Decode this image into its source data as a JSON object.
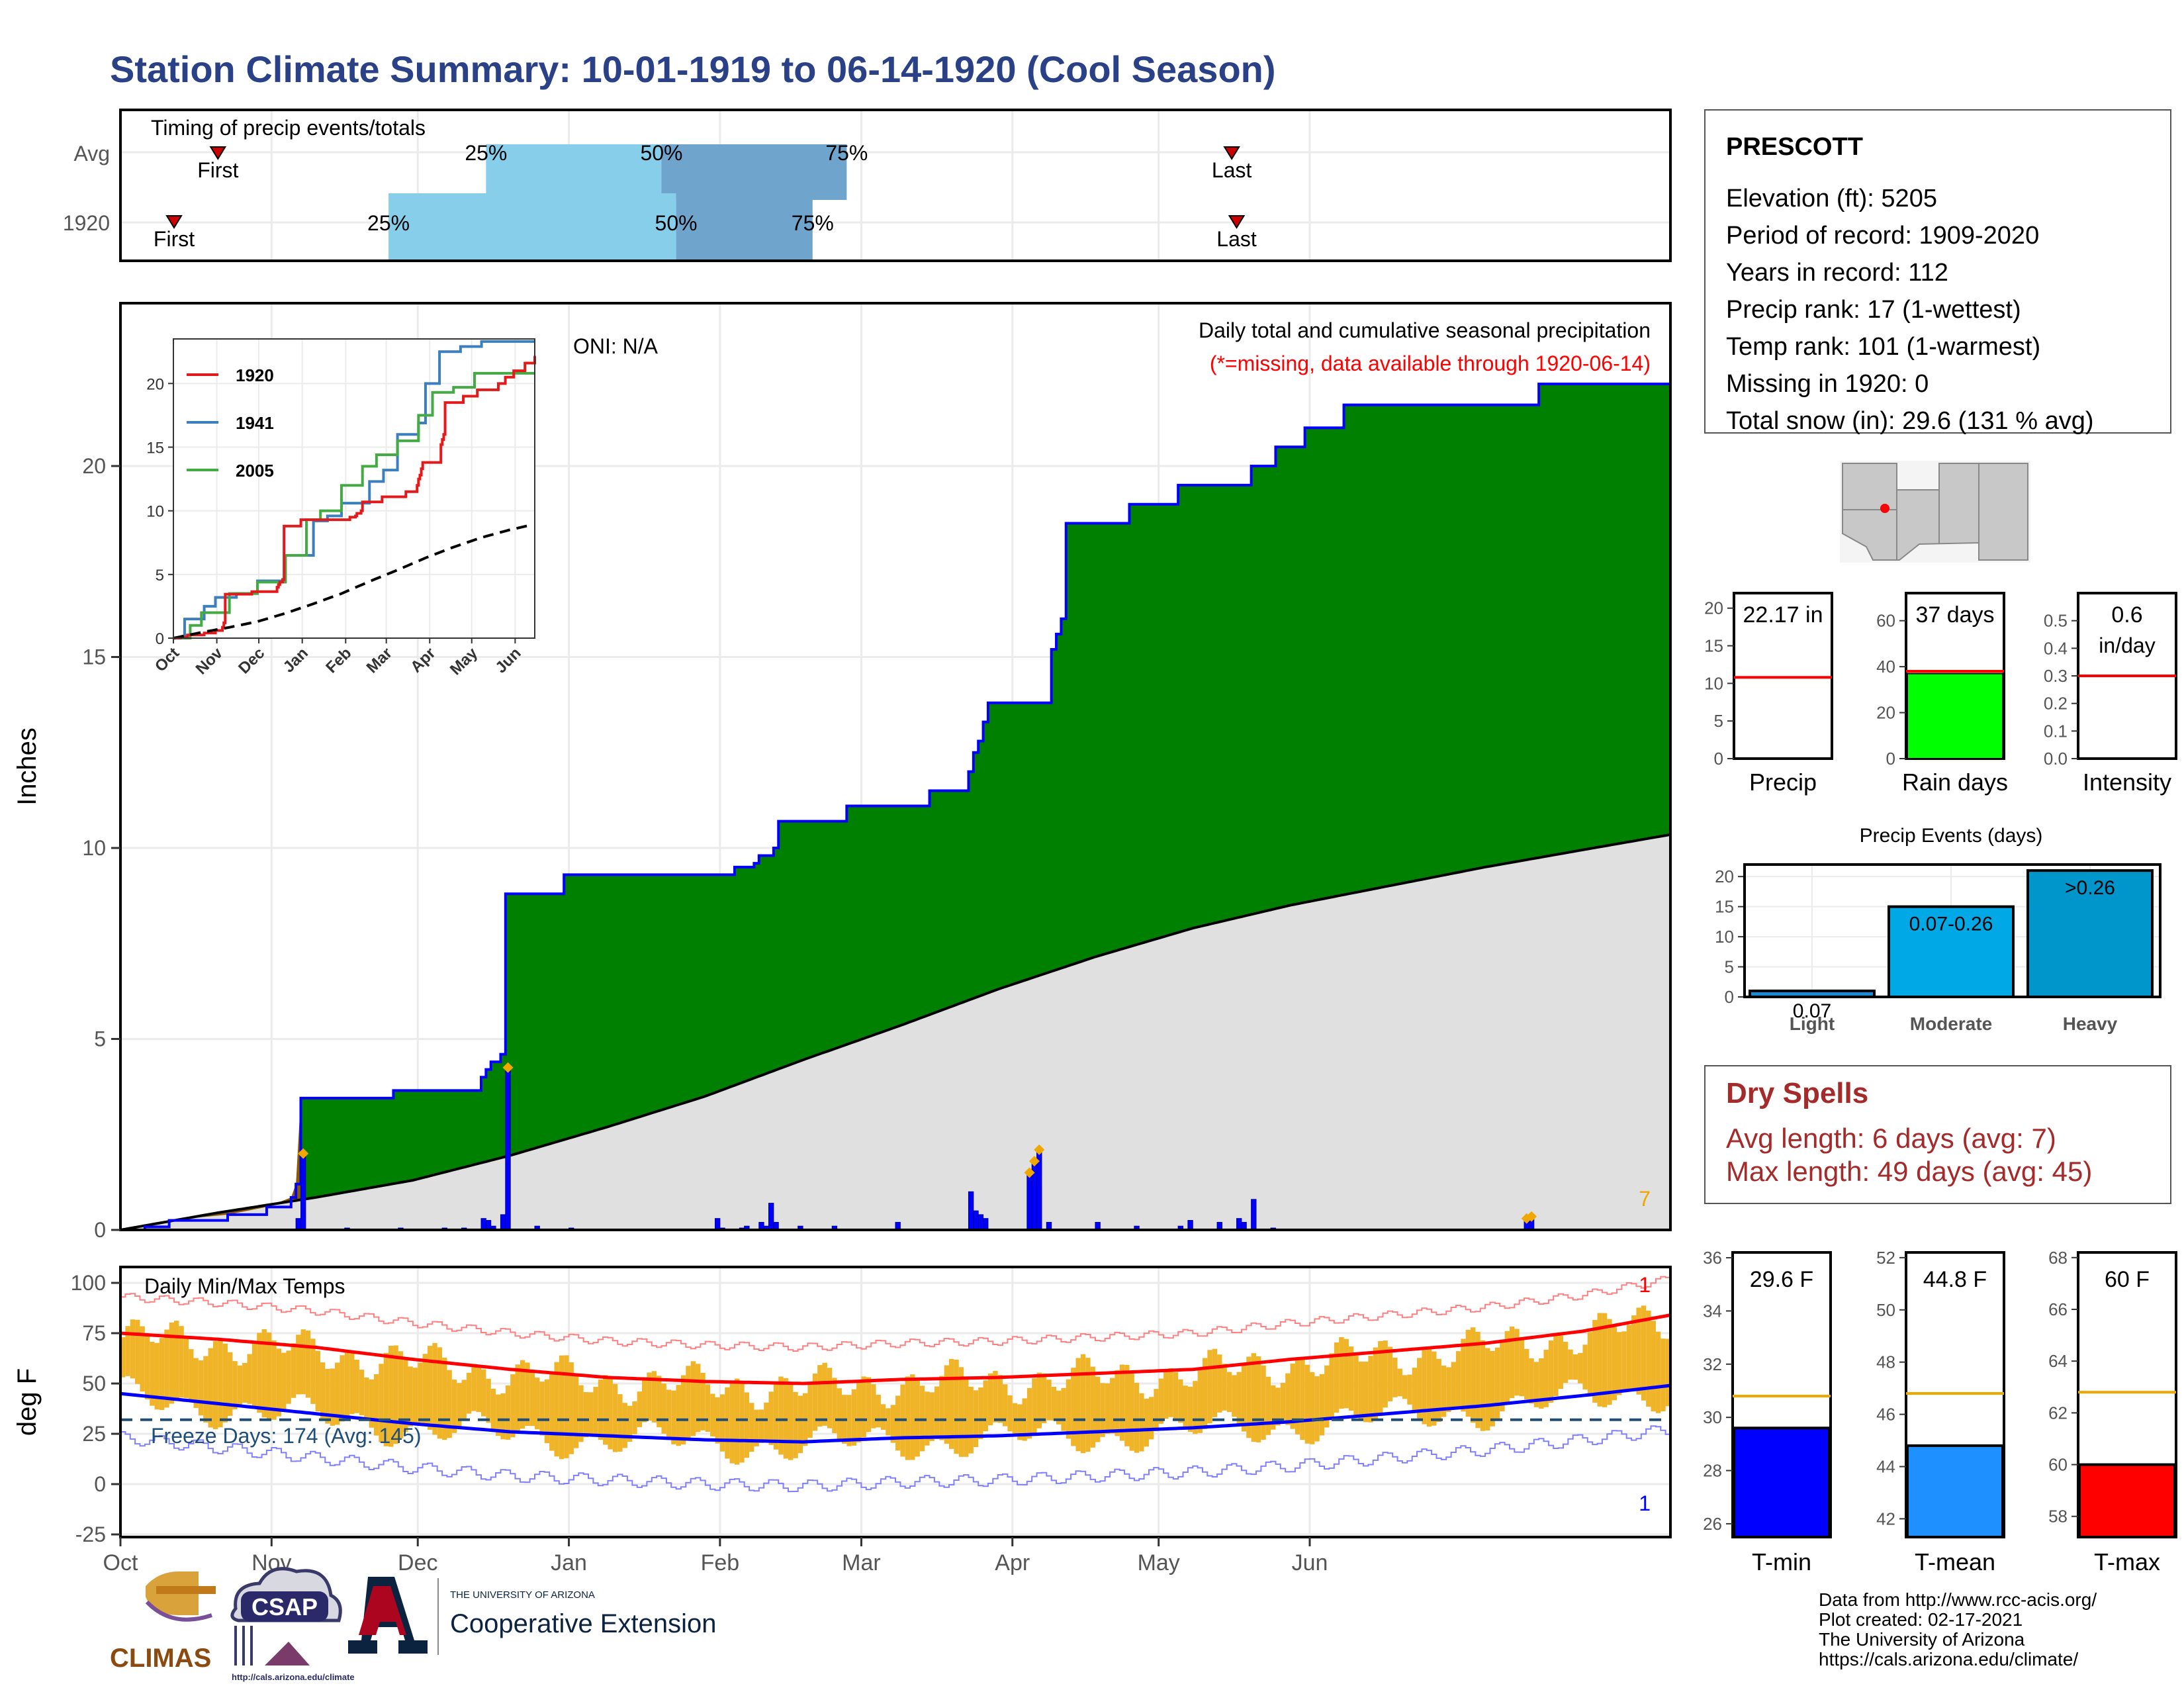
{
  "title": "Station Climate Summary: 10-01-1919 to 06-14-1920 (Cool Season)",
  "station": {
    "name": "PRESCOTT",
    "lines": [
      "Elevation (ft): 5205",
      "Period of record: 1909-2020",
      "Years in record: 112",
      "Precip rank: 17 (1-wettest)",
      "Temp rank: 101 (1-warmest)",
      "Missing in 1920: 0",
      "Total snow (in): 29.6 (131 % avg)"
    ]
  },
  "colors": {
    "title": "#2a4187",
    "green_area": "#008000",
    "avg_area": "#e0e0e0",
    "brown_area": "#8b5a00",
    "precip_bar": "#0000ff",
    "orange": "#f0a800",
    "red": "#ff0000",
    "blue": "#0000ff",
    "dry_spells": "#a52a2a",
    "light_blue": "#87ceeb",
    "steel_blue": "#6fa5cd"
  },
  "timing": {
    "label": "Timing of precip events/totals",
    "rows": [
      {
        "name": "Avg",
        "first": "First",
        "last": "Last",
        "p25": "25%",
        "p50": "50%",
        "p75": "75%",
        "first_day": 20,
        "last_day": 228,
        "q25_day": 75,
        "q50_day": 111,
        "q75_day": 149
      },
      {
        "name": "1920",
        "first": "First",
        "last": "Last",
        "p25": "25%",
        "p50": "50%",
        "p75": "75%",
        "first_day": 11,
        "last_day": 229,
        "q25_day": 55,
        "q50_day": 114,
        "q75_day": 142
      }
    ]
  },
  "precip_panel": {
    "ylabel": "Inches",
    "header": "Daily total and cumulative seasonal precipitation",
    "missing_note": "(*=missing, data available through 1920-06-14)",
    "oni": "ONI: N/A",
    "corner_count": "7"
  },
  "months": [
    "Oct",
    "Nov",
    "Dec",
    "Jan",
    "Feb",
    "Mar",
    "Apr",
    "May",
    "Jun"
  ],
  "inset": {
    "legend": [
      "1920",
      "1941",
      "2005"
    ],
    "months": [
      "Oct",
      "Nov",
      "Dec",
      "Jan",
      "Feb",
      "Mar",
      "Apr",
      "May",
      "Jun"
    ],
    "yticks": [
      "0",
      "5",
      "10",
      "15",
      "20"
    ]
  },
  "temp_panel": {
    "ylabel": "deg F",
    "label": "Daily Min/Max Temps",
    "freeze": "Freeze Days: 174 (Avg: 145)",
    "record_hi": "1",
    "record_lo": "1",
    "yticks": [
      "100",
      "75",
      "50",
      "25",
      "0",
      "-25"
    ]
  },
  "mini_precip": {
    "value": "22.17 in",
    "label": "Precip",
    "yticks": [
      "0",
      "5",
      "10",
      "15",
      "20"
    ]
  },
  "mini_raindays": {
    "value": "37 days",
    "label": "Rain days",
    "yticks": [
      "0",
      "20",
      "40",
      "60"
    ]
  },
  "mini_intensity": {
    "value": "0.6",
    "unit": "in/day",
    "label": "Intensity",
    "yticks": [
      "0.0",
      "0.1",
      "0.2",
      "0.3",
      "0.4",
      "0.5"
    ]
  },
  "events": {
    "title": "Precip Events (days)",
    "cats": [
      "Light",
      "Moderate",
      "Heavy"
    ],
    "labels": [
      "0.07",
      "0.07-0.26",
      ">0.26"
    ],
    "yticks": [
      "0",
      "5",
      "10",
      "15",
      "20"
    ]
  },
  "dry_spells": {
    "title": "Dry Spells",
    "avg": "Avg length: 6 days (avg: 7)",
    "max": "Max length: 49 days (avg: 45)"
  },
  "tmin": {
    "value": "29.6 F",
    "label": "T-min",
    "yticks": [
      "26",
      "28",
      "30",
      "32",
      "34",
      "36"
    ]
  },
  "tmean": {
    "value": "44.8 F",
    "label": "T-mean",
    "yticks": [
      "42",
      "44",
      "46",
      "48",
      "50",
      "52"
    ]
  },
  "tmax": {
    "value": "60 F",
    "label": "T-max",
    "yticks": [
      "58",
      "60",
      "62",
      "64",
      "66",
      "68"
    ]
  },
  "footer": [
    "Data from http://www.rcc-acis.org/",
    "Plot created: 02-17-2021",
    "The University of Arizona",
    "https://cals.arizona.edu/climate/"
  ],
  "logos": {
    "climas": "CLIMAS",
    "csap": "CSAP",
    "csap_url": "http://cals.arizona.edu/climate",
    "ua_small": "THE UNIVERSITY OF ARIZONA",
    "coop": "Cooperative Extension"
  },
  "chart_data": {
    "type": "area",
    "x_unit": "day of season (0 = Oct 1, 1919)",
    "cumulative_1920": [
      [
        0,
        0
      ],
      [
        5,
        0.08
      ],
      [
        10,
        0.25
      ],
      [
        22,
        0.4
      ],
      [
        30,
        0.6
      ],
      [
        35,
        0.85
      ],
      [
        36,
        1.2
      ],
      [
        37,
        3.45
      ],
      [
        55,
        3.45
      ],
      [
        56,
        3.65
      ],
      [
        73,
        3.65
      ],
      [
        74,
        4.0
      ],
      [
        75,
        4.2
      ],
      [
        76,
        4.4
      ],
      [
        78,
        4.6
      ],
      [
        79,
        8.8
      ],
      [
        90,
        8.8
      ],
      [
        91,
        9.3
      ],
      [
        125,
        9.3
      ],
      [
        126,
        9.5
      ],
      [
        130,
        9.6
      ],
      [
        131,
        9.8
      ],
      [
        134,
        10.0
      ],
      [
        135,
        10.7
      ],
      [
        148,
        10.7
      ],
      [
        149,
        11.1
      ],
      [
        165,
        11.1
      ],
      [
        166,
        11.5
      ],
      [
        173,
        11.5
      ],
      [
        174,
        12.0
      ],
      [
        175,
        12.5
      ],
      [
        176,
        12.8
      ],
      [
        177,
        13.3
      ],
      [
        178,
        13.8
      ],
      [
        190,
        13.8
      ],
      [
        191,
        15.2
      ],
      [
        192,
        15.6
      ],
      [
        193,
        16.0
      ],
      [
        194,
        18.5
      ],
      [
        206,
        18.5
      ],
      [
        207,
        19.0
      ],
      [
        216,
        19.0
      ],
      [
        217,
        19.5
      ],
      [
        231,
        19.5
      ],
      [
        232,
        20.0
      ],
      [
        236,
        20.0
      ],
      [
        237,
        20.5
      ],
      [
        242,
        20.5
      ],
      [
        243,
        21.0
      ],
      [
        250,
        21.0
      ],
      [
        251,
        21.6
      ],
      [
        290,
        21.6
      ],
      [
        291,
        22.15
      ],
      [
        297,
        22.15
      ],
      [
        318,
        22.17
      ]
    ],
    "cumulative_avg": [
      [
        0,
        0
      ],
      [
        20,
        0.45
      ],
      [
        40,
        0.85
      ],
      [
        60,
        1.3
      ],
      [
        80,
        1.95
      ],
      [
        100,
        2.7
      ],
      [
        120,
        3.5
      ],
      [
        140,
        4.45
      ],
      [
        160,
        5.35
      ],
      [
        180,
        6.3
      ],
      [
        200,
        7.15
      ],
      [
        220,
        7.9
      ],
      [
        240,
        8.5
      ],
      [
        260,
        9.0
      ],
      [
        280,
        9.5
      ],
      [
        300,
        9.95
      ],
      [
        318,
        10.35
      ]
    ],
    "daily_precip": [
      [
        36,
        0.3
      ],
      [
        37,
        2.0
      ],
      [
        46,
        0.05
      ],
      [
        57,
        0.05
      ],
      [
        66,
        0.05
      ],
      [
        70,
        0.05
      ],
      [
        74,
        0.3
      ],
      [
        75,
        0.25
      ],
      [
        76,
        0.1
      ],
      [
        78,
        0.4
      ],
      [
        79,
        4.25
      ],
      [
        85,
        0.1
      ],
      [
        92,
        0.05
      ],
      [
        122,
        0.3
      ],
      [
        123,
        0.05
      ],
      [
        127,
        0.05
      ],
      [
        128,
        0.1
      ],
      [
        131,
        0.2
      ],
      [
        132,
        0.1
      ],
      [
        133,
        0.7
      ],
      [
        134,
        0.2
      ],
      [
        139,
        0.1
      ],
      [
        146,
        0.1
      ],
      [
        159,
        0.2
      ],
      [
        174,
        1.0
      ],
      [
        175,
        0.5
      ],
      [
        176,
        0.4
      ],
      [
        177,
        0.3
      ],
      [
        186,
        1.5
      ],
      [
        187,
        1.8
      ],
      [
        188,
        2.1
      ],
      [
        190,
        0.2
      ],
      [
        200,
        0.2
      ],
      [
        208,
        0.1
      ],
      [
        217,
        0.1
      ],
      [
        219,
        0.25
      ],
      [
        225,
        0.2
      ],
      [
        229,
        0.3
      ],
      [
        230,
        0.2
      ],
      [
        232,
        0.8
      ],
      [
        236,
        0.05
      ],
      [
        288,
        0.3
      ],
      [
        289,
        0.35
      ]
    ],
    "tmax_avg": [
      [
        0,
        75
      ],
      [
        20,
        72
      ],
      [
        40,
        68
      ],
      [
        60,
        62
      ],
      [
        80,
        57
      ],
      [
        100,
        53
      ],
      [
        120,
        51
      ],
      [
        140,
        50
      ],
      [
        160,
        52
      ],
      [
        180,
        53
      ],
      [
        200,
        55
      ],
      [
        220,
        57
      ],
      [
        240,
        62
      ],
      [
        260,
        66
      ],
      [
        280,
        70
      ],
      [
        300,
        76
      ],
      [
        318,
        84
      ]
    ],
    "tmin_avg": [
      [
        0,
        45
      ],
      [
        20,
        40
      ],
      [
        40,
        35
      ],
      [
        60,
        30
      ],
      [
        80,
        26
      ],
      [
        100,
        24
      ],
      [
        120,
        22
      ],
      [
        140,
        21
      ],
      [
        160,
        23
      ],
      [
        180,
        24
      ],
      [
        200,
        26
      ],
      [
        220,
        28
      ],
      [
        240,
        31
      ],
      [
        260,
        35
      ],
      [
        280,
        39
      ],
      [
        300,
        44
      ],
      [
        318,
        49
      ]
    ],
    "freeze_line": 32
  }
}
